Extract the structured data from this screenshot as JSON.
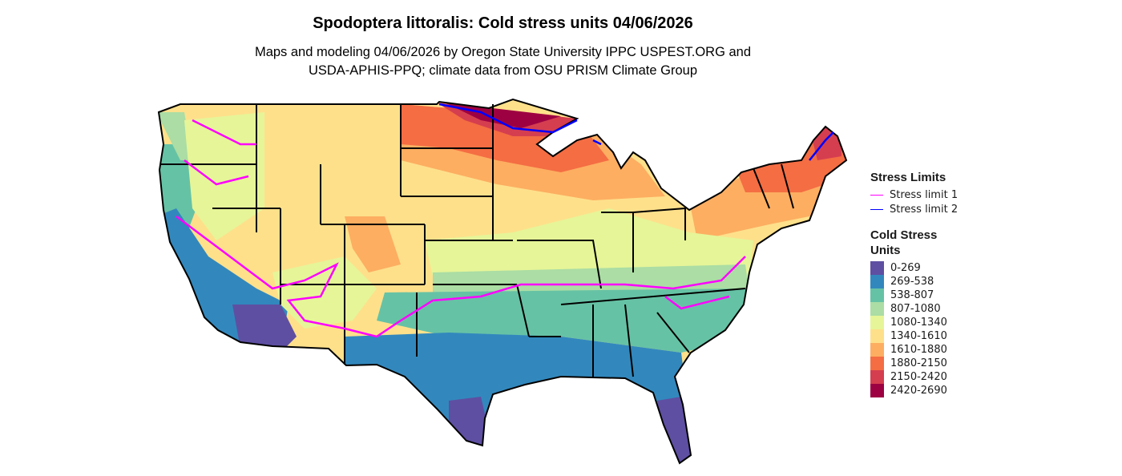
{
  "title": "Spodoptera littoralis: Cold stress units 04/06/2026",
  "subtitle_line1": "Maps and modeling 04/06/2026 by Oregon State University IPPC USPEST.ORG and",
  "subtitle_line2": "USDA-APHIS-PPQ; climate data from OSU PRISM Climate Group",
  "legend": {
    "stress_title": "Stress Limits",
    "stress_limits": [
      {
        "label": "Stress limit 1",
        "color": "#FF00FF"
      },
      {
        "label": "Stress limit 2",
        "color": "#0000FF"
      }
    ],
    "units_title_line1": "Cold Stress",
    "units_title_line2": "Units",
    "classes": [
      {
        "label": "0-269",
        "color": "#5E4FA2"
      },
      {
        "label": "269-538",
        "color": "#3288BD"
      },
      {
        "label": "538-807",
        "color": "#66C2A5"
      },
      {
        "label": "807-1080",
        "color": "#ABDDA4"
      },
      {
        "label": "1080-1340",
        "color": "#E6F598"
      },
      {
        "label": "1340-1610",
        "color": "#FEE08B"
      },
      {
        "label": "1610-1880",
        "color": "#FDAE61"
      },
      {
        "label": "1880-2150",
        "color": "#F46D43"
      },
      {
        "label": "2150-2420",
        "color": "#D53E4F"
      },
      {
        "label": "2420-2690",
        "color": "#9E0142"
      }
    ]
  }
}
